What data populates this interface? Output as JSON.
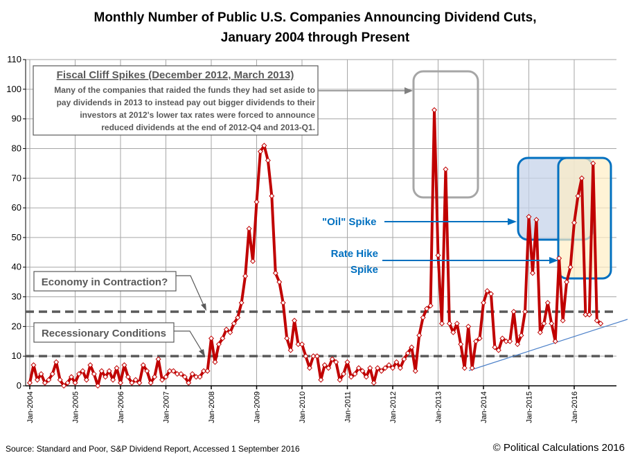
{
  "chart_data": {
    "type": "line",
    "title": "Monthly Number of Public U.S. Companies Announcing Dividend Cuts,",
    "subtitle": "January 2004 through Present",
    "xlabel": "",
    "ylabel": "",
    "ylim": [
      0,
      110
    ],
    "yticks": [
      0,
      10,
      20,
      30,
      40,
      50,
      60,
      70,
      80,
      90,
      100,
      110
    ],
    "xtick_labels": [
      "Jan-2004",
      "Jan-2005",
      "Jan-2006",
      "Jan-2007",
      "Jan-2008",
      "Jan-2009",
      "Jan-2010",
      "Jan-2011",
      "Jan-2012",
      "Jan-2013",
      "Jan-2014",
      "Jan-2015",
      "Jan-2016"
    ],
    "grid": true,
    "start": "Jan-2004",
    "end": "Aug-2016",
    "values": [
      1,
      7,
      2,
      4,
      1,
      2,
      4,
      8,
      2,
      0,
      1,
      3,
      1,
      4,
      5,
      2,
      7,
      4,
      0,
      5,
      3,
      5,
      2,
      6,
      1,
      7,
      3,
      1,
      2,
      1,
      7,
      5,
      1,
      3,
      9,
      2,
      3,
      5,
      5,
      4,
      4,
      3,
      1,
      4,
      3,
      3,
      5,
      5,
      16,
      8,
      14,
      16,
      19,
      18,
      21,
      23,
      28,
      37,
      53,
      42,
      62,
      79,
      81,
      76,
      64,
      38,
      35,
      28,
      16,
      12,
      22,
      14,
      14,
      10,
      6,
      10,
      10,
      2,
      7,
      6,
      9,
      8,
      2,
      4,
      8,
      3,
      4,
      6,
      5,
      3,
      6,
      1,
      6,
      5,
      6,
      7,
      6,
      8,
      6,
      9,
      11,
      13,
      5,
      17,
      23,
      26,
      27,
      93,
      44,
      21,
      73,
      21,
      18,
      21,
      14,
      6,
      20,
      6,
      15,
      16,
      28,
      32,
      31,
      13,
      12,
      16,
      15,
      15,
      25,
      14,
      17,
      25,
      57,
      38,
      56,
      18,
      21,
      28,
      21,
      15,
      43,
      22,
      35,
      40,
      55,
      64,
      70,
      24,
      24,
      75,
      22,
      21
    ],
    "line_color": "#c00000",
    "reference_lines": [
      {
        "value": 25,
        "label": "Economy in Contraction?"
      },
      {
        "value": 10,
        "label": "Recessionary Conditions"
      }
    ],
    "annotations": {
      "fiscal_cliff_title": "Fiscal Cliff Spikes (December 2012, March 2013)",
      "fiscal_cliff_lines": [
        "Many of the companies that raided the funds they had set aside to",
        "pay dividends in 2013 to instead pay out bigger dividends to their",
        "investors at 2012's lower tax rates were forced to announce",
        "reduced dividends at the end of 2012-Q4 and 2013-Q1."
      ],
      "oil_spike": "\"Oil\" Spike",
      "rate_hike_line1": "Rate Hike",
      "rate_hike_line2": "Spike"
    },
    "colors": {
      "oil_box": "#0070c0",
      "oil_fill": "#c5d3ea",
      "rate_fill": "#ffeec4",
      "fiscal_box": "#a6a6a6",
      "trend": "#4a7fc8"
    }
  },
  "footer": {
    "source": "Source: Standard and Poor, S&P Dividend  Report, Accessed 1 September 2016",
    "copyright": "© Political Calculations 2016"
  }
}
